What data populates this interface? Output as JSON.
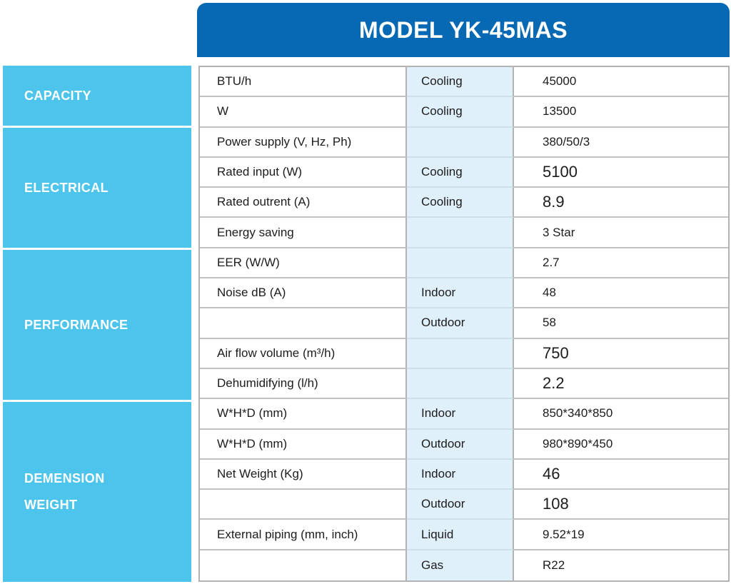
{
  "colors": {
    "header_bg": "#0769b3",
    "sidebar_bg": "#4cc4ec",
    "condition_bg": "#e0f0fb",
    "border": "#b3b3b3",
    "text": "#1c1c1c",
    "header_text": "#ffffff"
  },
  "header": {
    "title": "MODEL YK-45MAS"
  },
  "sidebar": {
    "sections": [
      {
        "label": "CAPACITY",
        "lines": [
          "CAPACITY"
        ]
      },
      {
        "label": "ELECTRICAL",
        "lines": [
          "ELECTRICAL"
        ]
      },
      {
        "label": "PERFORMANCE",
        "lines": [
          "PERFORMANCE"
        ]
      },
      {
        "label": "DEMENSION WEIGHT",
        "lines": [
          "DEMENSION",
          "WEIGHT"
        ]
      }
    ]
  },
  "table": {
    "rows": [
      {
        "param": "BTU/h",
        "cond": "Cooling",
        "value": "45000"
      },
      {
        "param": "W",
        "cond": "Cooling",
        "value": "13500"
      },
      {
        "param": "Power supply (V, Hz, Ph)",
        "cond": "",
        "value": "380/50/3"
      },
      {
        "param": "Rated input (W)",
        "cond": "Cooling",
        "value": "5100"
      },
      {
        "param": "Rated outrent (A)",
        "cond": "Cooling",
        "value": "8.9"
      },
      {
        "param": "Energy saving",
        "cond": "",
        "value": "3 Star"
      },
      {
        "param": "EER (W/W)",
        "cond": "",
        "value": "2.7"
      },
      {
        "param": "Noise dB (A)",
        "cond": "Indoor",
        "value": "48"
      },
      {
        "param": "",
        "cond": "Outdoor",
        "value": "58"
      },
      {
        "param": "Air flow volume (m³/h)",
        "cond": "",
        "value": "750"
      },
      {
        "param": "Dehumidifying (l/h)",
        "cond": "",
        "value": "2.2"
      },
      {
        "param": "W*H*D (mm)",
        "cond": "Indoor",
        "value": "850*340*850"
      },
      {
        "param": "W*H*D (mm)",
        "cond": "Outdoor",
        "value": "980*890*450"
      },
      {
        "param": "Net Weight (Kg)",
        "cond": "Indoor",
        "value": "46"
      },
      {
        "param": "",
        "cond": "Outdoor",
        "value": "108"
      },
      {
        "param": "External piping (mm, inch)",
        "cond": "Liquid",
        "value": "9.52*19"
      },
      {
        "param": "",
        "cond": "Gas",
        "value": "R22"
      }
    ]
  }
}
